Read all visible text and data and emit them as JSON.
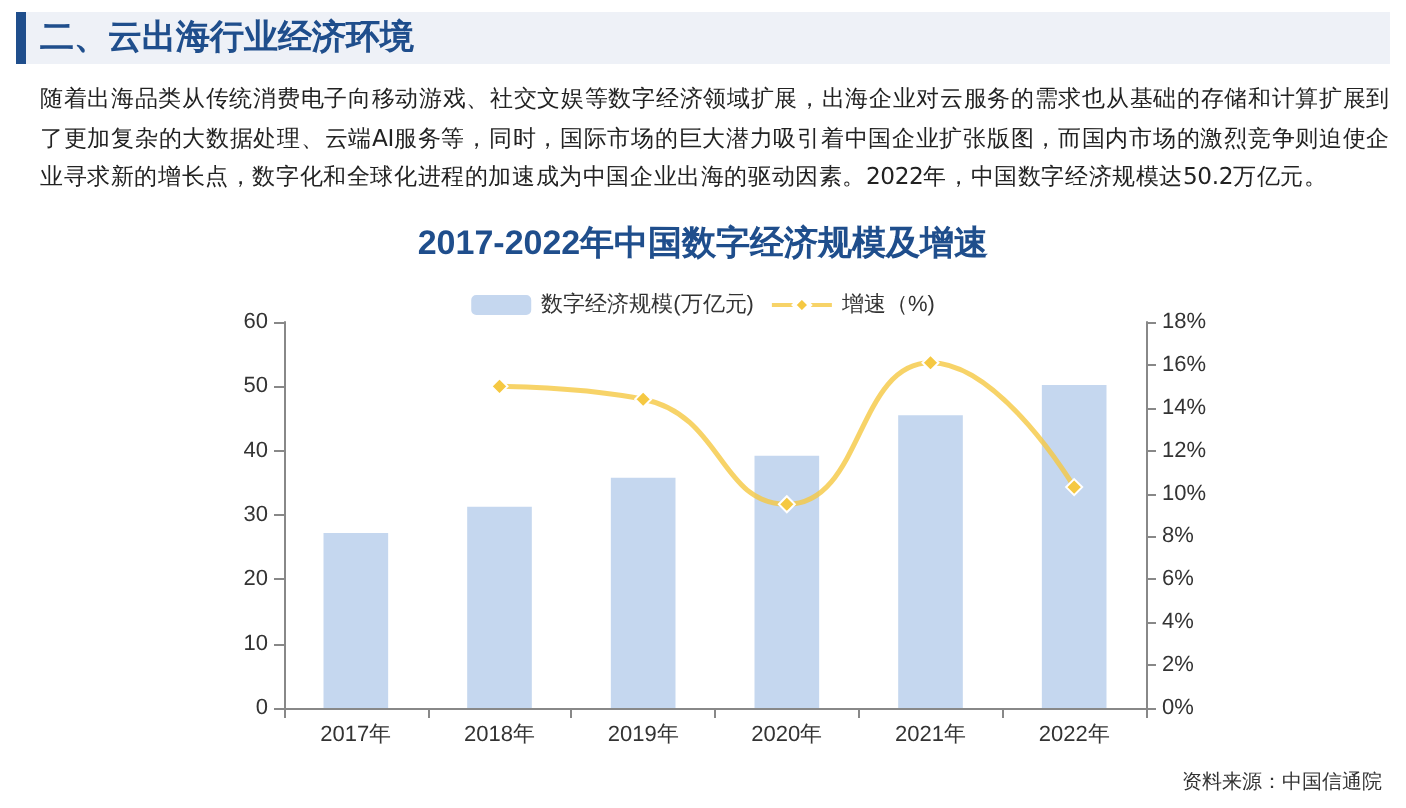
{
  "chart_data": {
    "type": "bar",
    "title": "2017-2022年中国数字经济规模及增速",
    "annotations": [
      "二、云出海行业经济环境",
      "随着出海品类从传统消费电子向移动游戏、社交文娱等数字经济领域扩展，出海企业对云服务的需求也从基础的存储和计算扩展到了更加复杂的大数据处理、云端AI服务等，同时，国际市场的巨大潜力吸引着中国企业扩张版图，而国内市场的激烈竞争则迫使企业寻求新的增长点，数字化和全球化进程的加速成为中国企业出海的驱动因素。2022年，中国数字经济规模达50.2万亿元。",
      "资料来源：中国信通院"
    ],
    "categories": [
      "2017年",
      "2018年",
      "2019年",
      "2020年",
      "2021年",
      "2022年"
    ],
    "series": [
      {
        "name": "数字经济规模(万亿元)",
        "color": "#c5d7ef",
        "values": [
          27.2,
          31.3,
          35.8,
          39.2,
          45.5,
          50.2
        ]
      },
      {
        "name": "增速（%)",
        "type": "line",
        "axis": "y2",
        "color": "#f5c842",
        "marker": "diamond",
        "values": [
          null,
          15.0,
          14.4,
          9.5,
          16.1,
          10.3
        ]
      }
    ],
    "ylim": [
      0,
      60
    ],
    "yticks": [
      0,
      10,
      20,
      30,
      40,
      50,
      60
    ],
    "y2lim": [
      0,
      18
    ],
    "y2ticks": [
      {
        "value": 0,
        "label": "0%"
      },
      {
        "value": 2,
        "label": "2%"
      },
      {
        "value": 4,
        "label": "4%"
      },
      {
        "value": 6,
        "label": "6%"
      },
      {
        "value": 8,
        "label": "8%"
      },
      {
        "value": 10,
        "label": "10%"
      },
      {
        "value": 12,
        "label": "12%"
      },
      {
        "value": 14,
        "label": "14%"
      },
      {
        "value": 16,
        "label": "16%"
      },
      {
        "value": 18,
        "label": "18%"
      }
    ],
    "grid": false,
    "legend": "top"
  }
}
